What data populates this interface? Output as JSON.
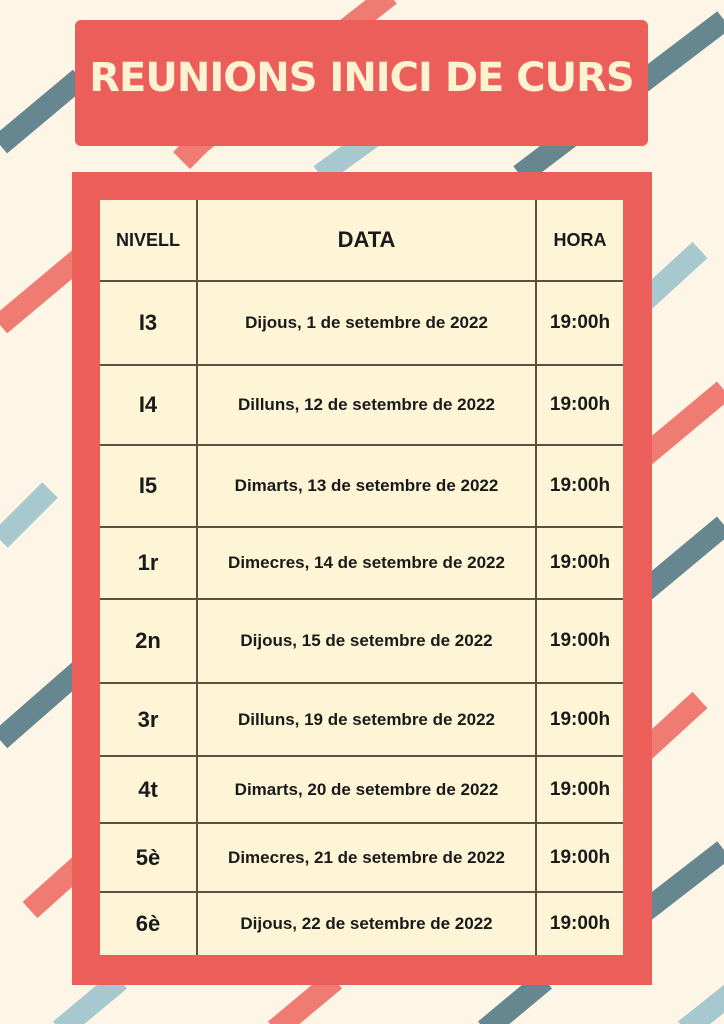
{
  "title": "REUNIONS INICI DE CURS",
  "colors": {
    "accent": "#eb5e5a",
    "background": "#fdf6e6",
    "stripe_coral": "#ef7b72",
    "stripe_teal": "#66878f",
    "stripe_light_blue": "#a8c8cf",
    "table_bg": "#fdf5d6"
  },
  "table": {
    "headers": [
      "NIVELL",
      "DATA",
      "HORA"
    ],
    "rows": [
      {
        "nivell": "I3",
        "data": "Dijous, 1 de setembre de 2022",
        "hora": "19:00h"
      },
      {
        "nivell": "I4",
        "data": "Dilluns, 12 de setembre de 2022",
        "hora": "19:00h"
      },
      {
        "nivell": "I5",
        "data": "Dimarts, 13 de setembre de 2022",
        "hora": "19:00h"
      },
      {
        "nivell": "1r",
        "data": "Dimecres, 14 de setembre de 2022",
        "hora": "19:00h"
      },
      {
        "nivell": "2n",
        "data": "Dijous, 15 de setembre de 2022",
        "hora": "19:00h"
      },
      {
        "nivell": "3r",
        "data": "Dilluns, 19 de setembre de 2022",
        "hora": "19:00h"
      },
      {
        "nivell": "4t",
        "data": "Dimarts, 20 de setembre de 2022",
        "hora": "19:00h"
      },
      {
        "nivell": "5è",
        "data": "Dimecres, 21 de setembre de 2022",
        "hora": "19:00h"
      },
      {
        "nivell": "6è",
        "data": "Dijous, 22 de setembre de 2022",
        "hora": "19:00h"
      }
    ]
  }
}
